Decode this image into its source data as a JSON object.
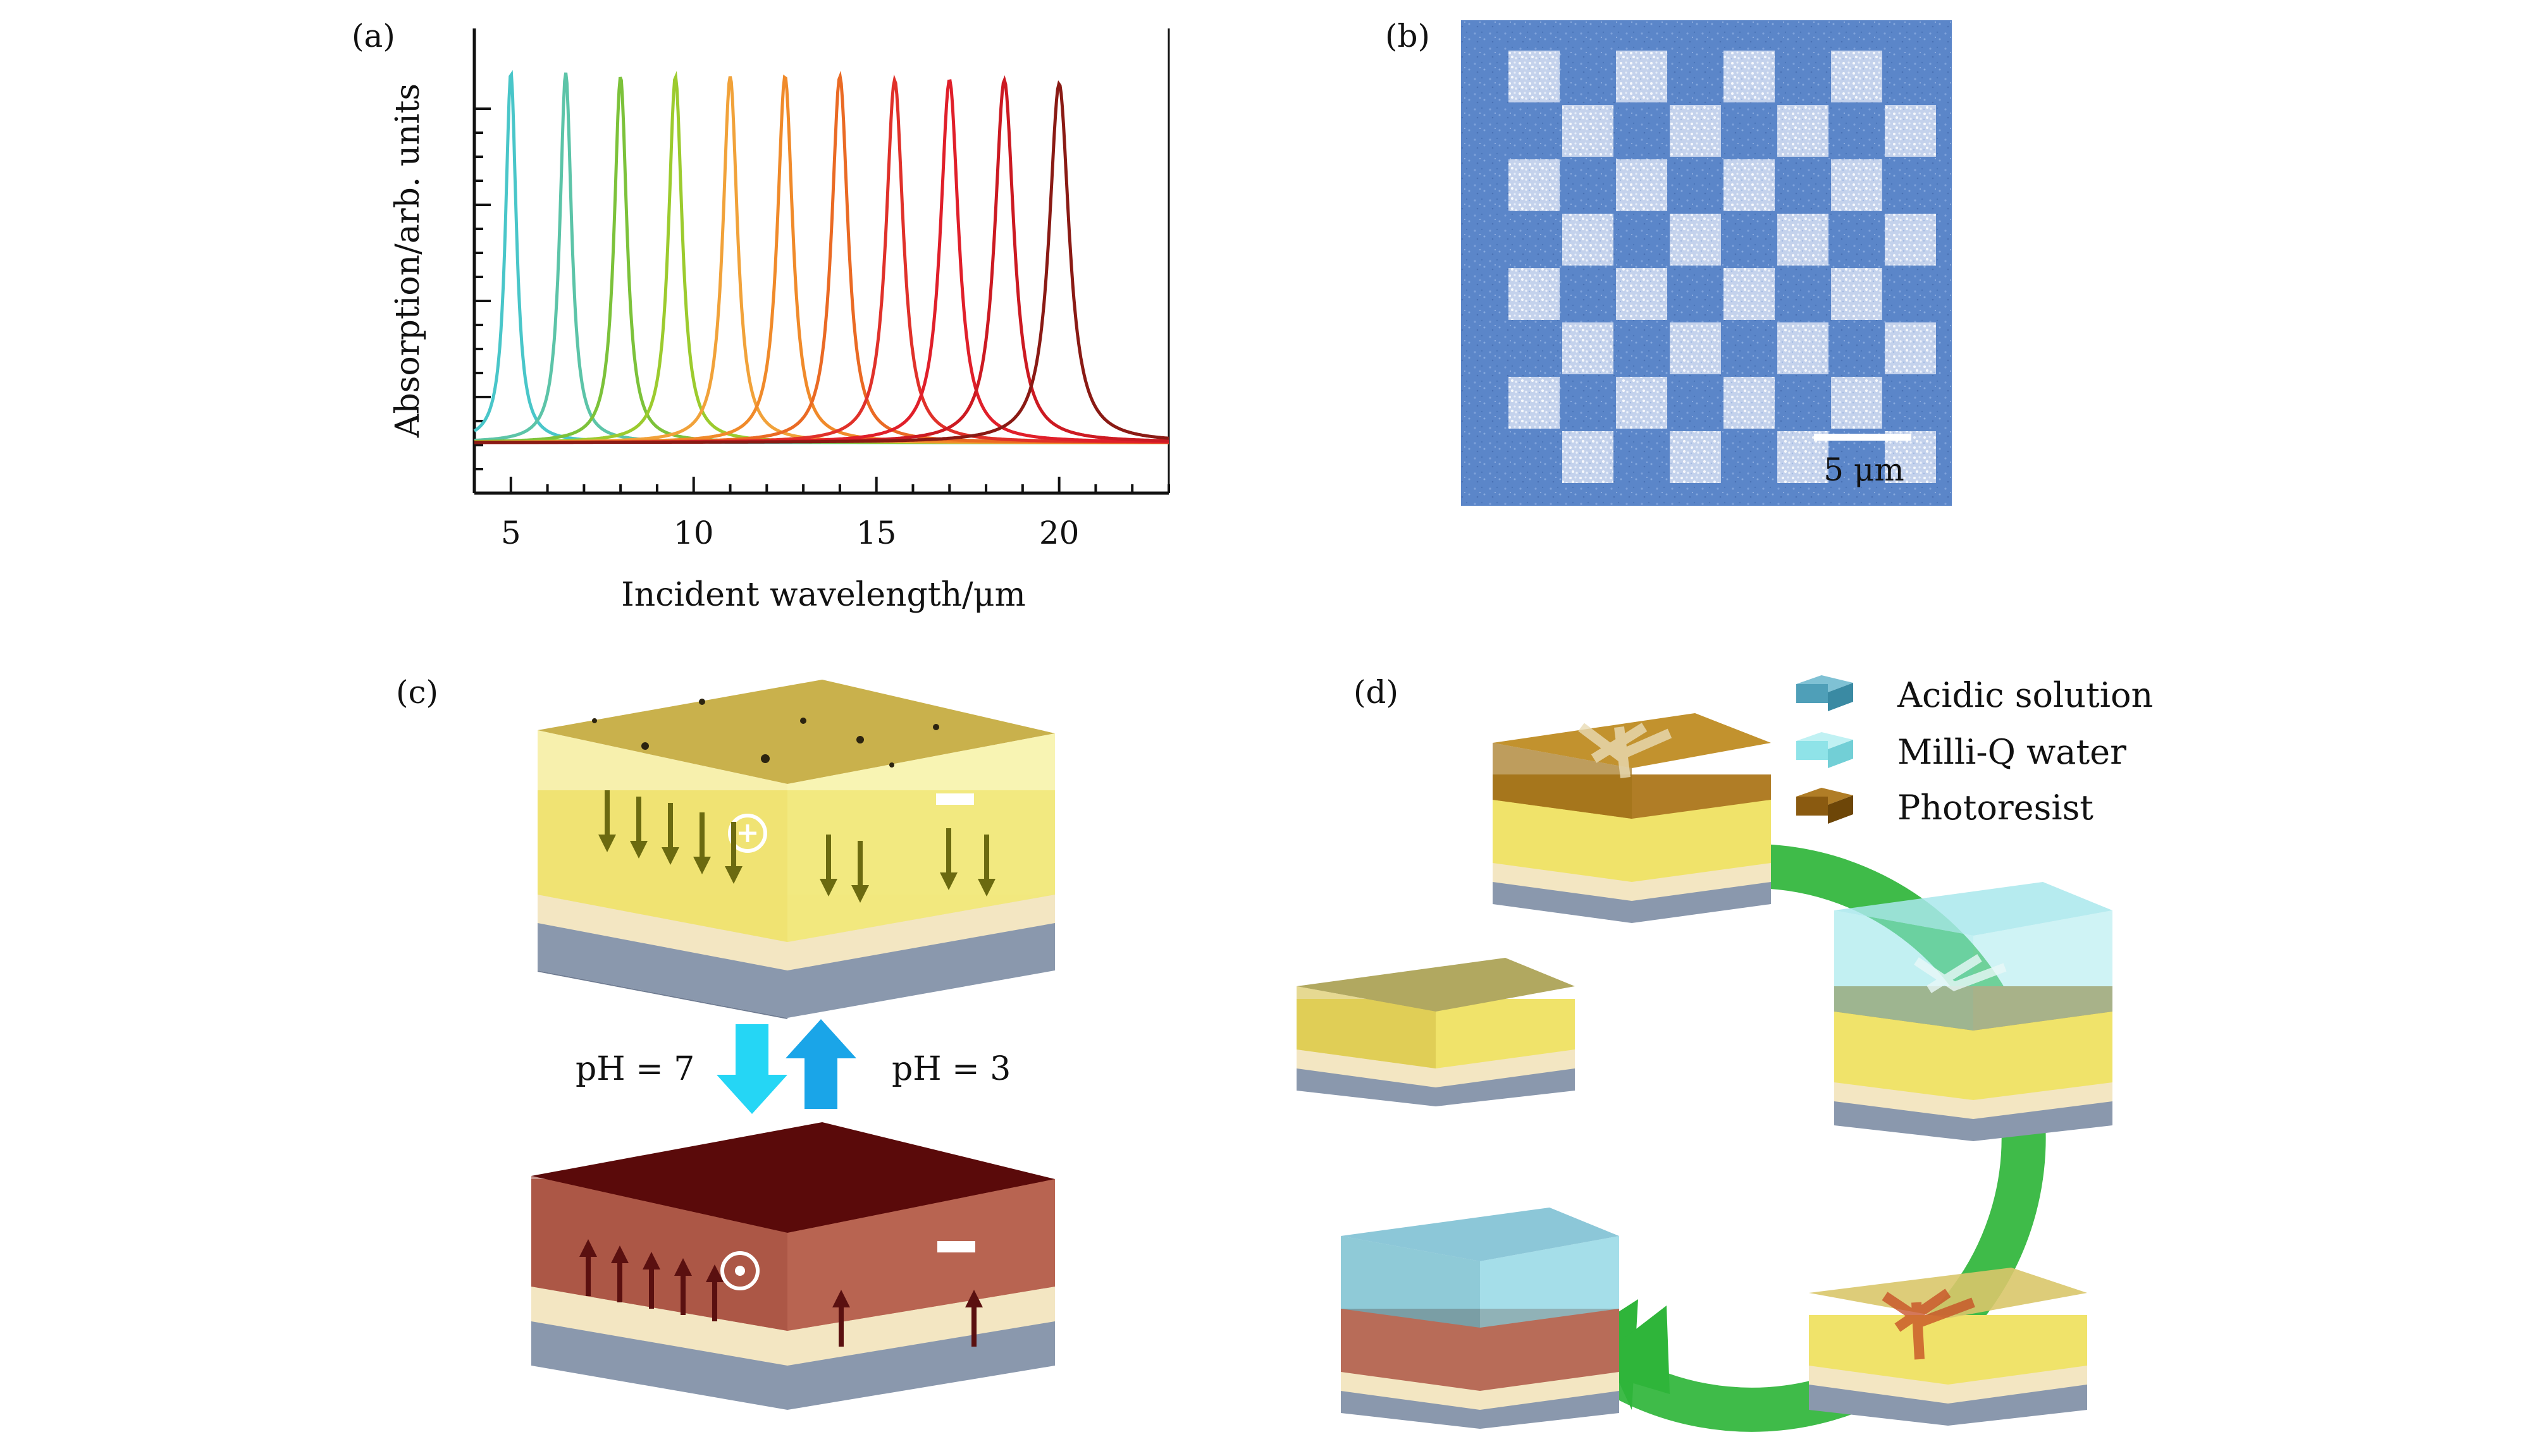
{
  "panels": {
    "a": {
      "label": "(a)",
      "chart_data": {
        "type": "line",
        "xlabel": "Incident wavelength/μm",
        "ylabel": "Absorption/arb. units",
        "xlim": [
          4,
          23
        ],
        "xticks": [
          5,
          10,
          15,
          20
        ],
        "tick_labels": [
          "5",
          "10",
          "15",
          "20"
        ],
        "peak_wavelengths": [
          5.0,
          6.5,
          8.0,
          9.5,
          11.0,
          12.5,
          14.0,
          15.5,
          17.0,
          18.5,
          20.0
        ],
        "peak_values": [
          1.0,
          1.0,
          0.99,
          0.99,
          0.99,
          0.99,
          0.99,
          0.98,
          0.98,
          0.98,
          0.97
        ],
        "colors": [
          "#49c6c9",
          "#5cc4a8",
          "#7cc23a",
          "#9ccb2e",
          "#f1a23a",
          "#f08a2a",
          "#ea6a24",
          "#e0312a",
          "#e01f2a",
          "#cc1a22",
          "#8a1a14"
        ],
        "grid": false,
        "legend": "none"
      }
    },
    "b": {
      "label": "(b)",
      "scale_bar_label": "5 μm",
      "checker_rows": 8,
      "checker_cols": 8
    },
    "c": {
      "label": "(c)",
      "ph_down": "pH = 7",
      "ph_up": "pH = 3",
      "top_color": "#d8c65e",
      "bottom_color": "#5a0a0a",
      "arrow_down_color": "#25d6f5",
      "arrow_up_color": "#1aa5e8"
    },
    "d": {
      "label": "(d)",
      "legend": [
        {
          "label": "Acidic solution",
          "color": "#4f9fb8"
        },
        {
          "label": "Milli-Q water",
          "color": "#8fe3e8"
        },
        {
          "label": "Photoresist",
          "color": "#8a5a10"
        }
      ],
      "cycle_color": "#2fb53a"
    }
  }
}
